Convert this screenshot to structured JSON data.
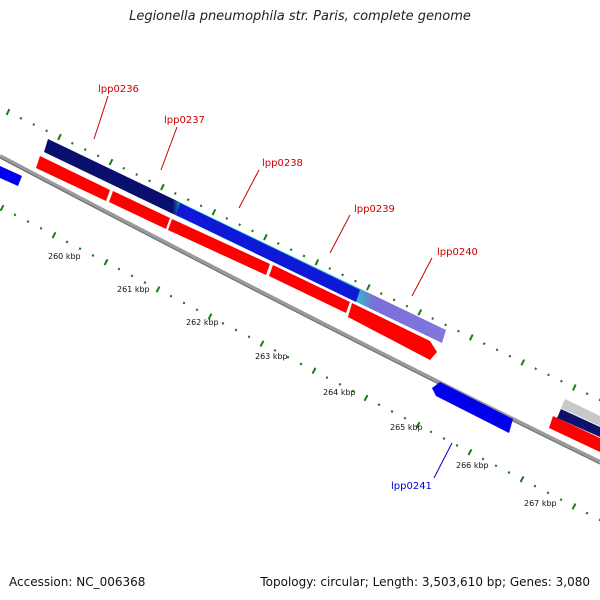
{
  "title": "Legionella pneumophila str. Paris, complete genome",
  "footer": {
    "accession": "Accession: NC_006368",
    "summary": "Topology: circular; Length: 3,503,610 bp; Genes: 3,080"
  },
  "colors": {
    "forward_gene": "#ff0000",
    "reverse_gene": "#0000ff",
    "backbone": "#999999",
    "tick": "#1a7a1a",
    "label_forward": "#cc0000",
    "label_reverse": "#0000cc"
  },
  "scale_labels": [
    "260 kbp",
    "261 kbp",
    "262 kbp",
    "263 kbp",
    "264 kbp",
    "265 kbp",
    "266 kbp",
    "267 kbp"
  ],
  "gene_labels": [
    {
      "text": "lpp0236",
      "strand": "forward"
    },
    {
      "text": "lpp0237",
      "strand": "forward"
    },
    {
      "text": "lpp0238",
      "strand": "forward"
    },
    {
      "text": "lpp0239",
      "strand": "forward"
    },
    {
      "text": "lpp0240",
      "strand": "forward"
    },
    {
      "text": "lpp0241",
      "strand": "reverse"
    }
  ]
}
